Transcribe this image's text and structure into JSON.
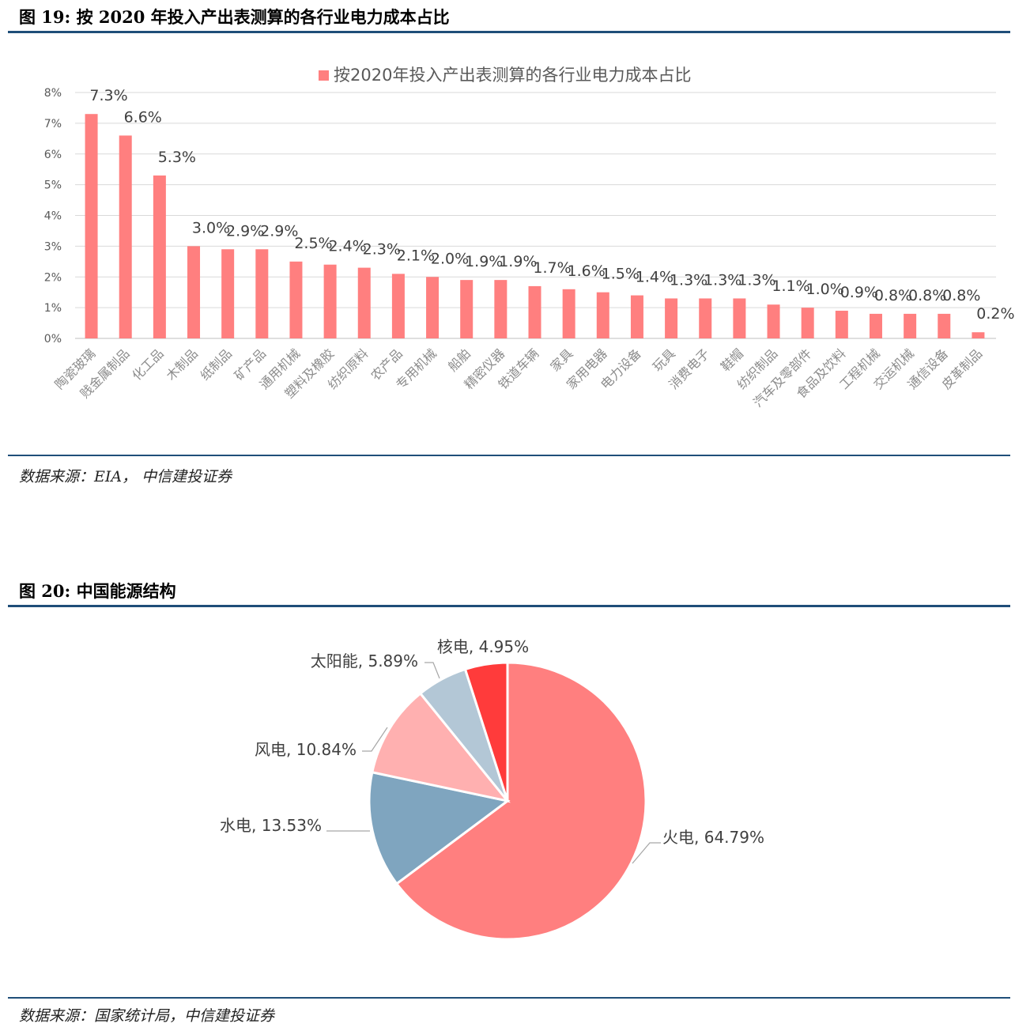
{
  "figure19": {
    "title": "图 19: 按 2020 年投入产出表测算的各行业电力成本占比",
    "source": "数据来源：EIA， 中信建投证券"
  },
  "figure20": {
    "title": "图 20: 中国能源结构",
    "source": "数据来源：国家统计局，中信建投证券"
  },
  "chart_data": [
    {
      "type": "bar",
      "title": "",
      "legend": [
        "按2020年投入产出表测算的各行业电力成本占比"
      ],
      "legend_position": "top",
      "series": [
        {
          "name": "按2020年投入产出表测算的各行业电力成本占比",
          "color": "#FF7F7F",
          "values": [
            7.3,
            6.6,
            5.3,
            3.0,
            2.9,
            2.9,
            2.5,
            2.4,
            2.3,
            2.1,
            2.0,
            1.9,
            1.9,
            1.7,
            1.6,
            1.5,
            1.4,
            1.3,
            1.3,
            1.3,
            1.1,
            1.0,
            0.9,
            0.8,
            0.8,
            0.8,
            0.2
          ]
        }
      ],
      "categories": [
        "陶瓷玻璃",
        "贱金属制品",
        "化工品",
        "木制品",
        "纸制品",
        "矿产品",
        "通用机械",
        "塑料及橡胶",
        "纺织原料",
        "农产品",
        "专用机械",
        "船舶",
        "精密仪器",
        "铁道车辆",
        "家具",
        "家用电器",
        "电力设备",
        "玩具",
        "消费电子",
        "鞋帽",
        "纺织制品",
        "汽车及零部件",
        "食品及饮料",
        "工程机械",
        "交运机械",
        "通信设备",
        "皮革制品"
      ],
      "data_labels": [
        "7.3%",
        "6.6%",
        "5.3%",
        "3.0%",
        "2.9%",
        "2.9%",
        "2.5%",
        "2.4%",
        "2.3%",
        "2.1%",
        "2.0%",
        "1.9%",
        "1.9%",
        "1.7%",
        "1.6%",
        "1.5%",
        "1.4%",
        "1.3%",
        "1.3%",
        "1.3%",
        "1.1%",
        "1.0%",
        "0.9%",
        "0.8%",
        "0.8%",
        "0.8%",
        "0.2%"
      ],
      "yticks": [
        "0%",
        "1%",
        "2%",
        "3%",
        "4%",
        "5%",
        "6%",
        "7%",
        "8%"
      ],
      "ylim": [
        0,
        8
      ],
      "grid": true
    },
    {
      "type": "pie",
      "title": "",
      "slices": [
        {
          "label": "火电, 64.79%",
          "value": 64.79,
          "color": "#FF7F7F"
        },
        {
          "label": "水电, 13.53%",
          "value": 13.53,
          "color": "#7FA5BF"
        },
        {
          "label": "风电, 10.84%",
          "value": 10.84,
          "color": "#FFB0B0"
        },
        {
          "label": "太阳能, 5.89%",
          "value": 5.89,
          "color": "#B3C7D6"
        },
        {
          "label": "核电, 4.95%",
          "value": 4.95,
          "color": "#FF3B3B"
        }
      ]
    }
  ]
}
